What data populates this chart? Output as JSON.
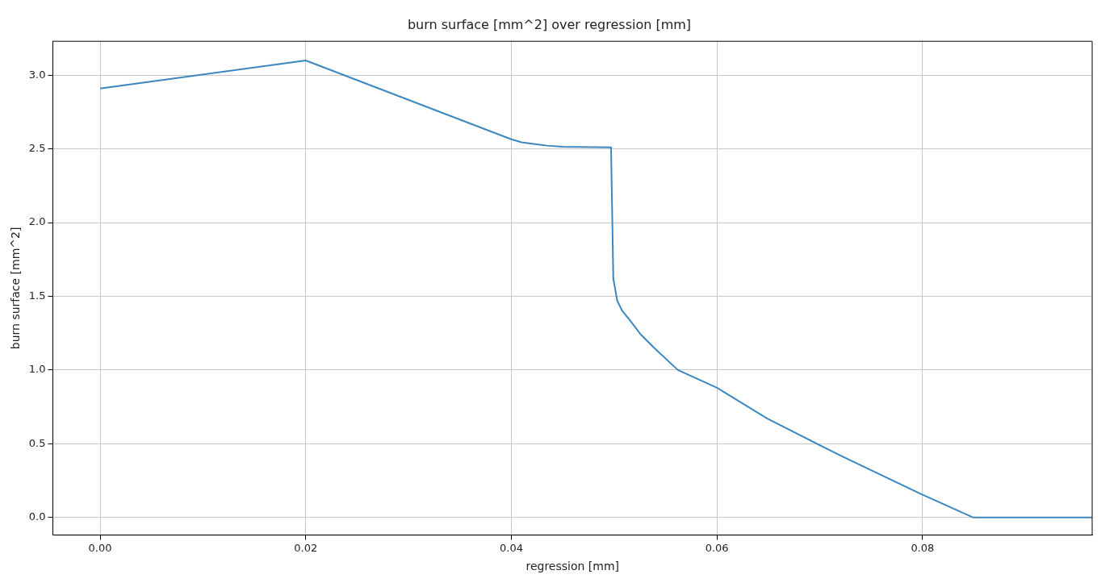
{
  "chart_data": {
    "type": "line",
    "title": "burn surface [mm^2] over regression [mm]",
    "xlabel": "regression [mm]",
    "ylabel": "burn surface [mm^2]",
    "x": [
      0,
      0.02,
      0.04,
      0.041,
      0.042,
      0.0435,
      0.045,
      0.0497,
      0.04992,
      0.0501,
      0.0503,
      0.0508,
      0.0515,
      0.0526,
      0.0539,
      0.0562,
      0.06,
      0.0649,
      0.072,
      0.0798,
      0.0849,
      0.0965
    ],
    "series": [
      {
        "color": "#3a87c0",
        "values": [
          2.91,
          3.1,
          2.565,
          2.545,
          2.535,
          2.522,
          2.515,
          2.51,
          1.62,
          1.55,
          1.47,
          1.4,
          1.34,
          1.24,
          1.15,
          1.0,
          0.88,
          0.67,
          0.42,
          0.16,
          0,
          0
        ]
      }
    ],
    "xlim": [
      -0.0046,
      0.0965
    ],
    "xticks": [
      {
        "value": 0,
        "label": "0.00"
      },
      0.02,
      0.04,
      0.06,
      0.08
    ],
    "ylim": [
      -0.12,
      3.23
    ],
    "yticks": [
      {
        "value": 0,
        "label": "0.0"
      },
      0.5,
      {
        "value": 1,
        "label": "1.0"
      },
      1.5,
      {
        "value": 2,
        "label": "2.0"
      },
      2.5,
      {
        "value": 3,
        "label": "3.0"
      }
    ],
    "grid": true,
    "legend": false,
    "marker": "none",
    "line_style": "solid"
  }
}
